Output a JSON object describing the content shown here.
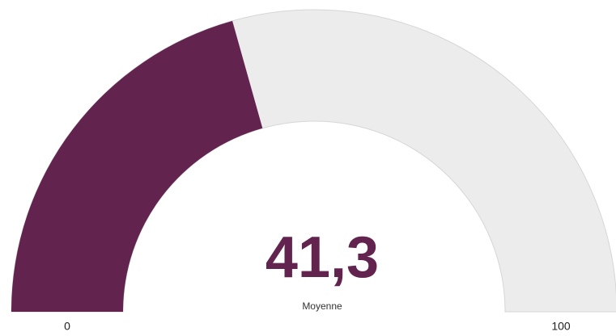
{
  "chart_data": {
    "type": "gauge",
    "values": [
      41.3
    ],
    "value_labels": [
      "41,3"
    ],
    "label": "Moyenne",
    "ylim": [
      0,
      100
    ],
    "yticks": [
      0,
      100
    ],
    "color": "#62234f",
    "track_color": "#ececec"
  }
}
